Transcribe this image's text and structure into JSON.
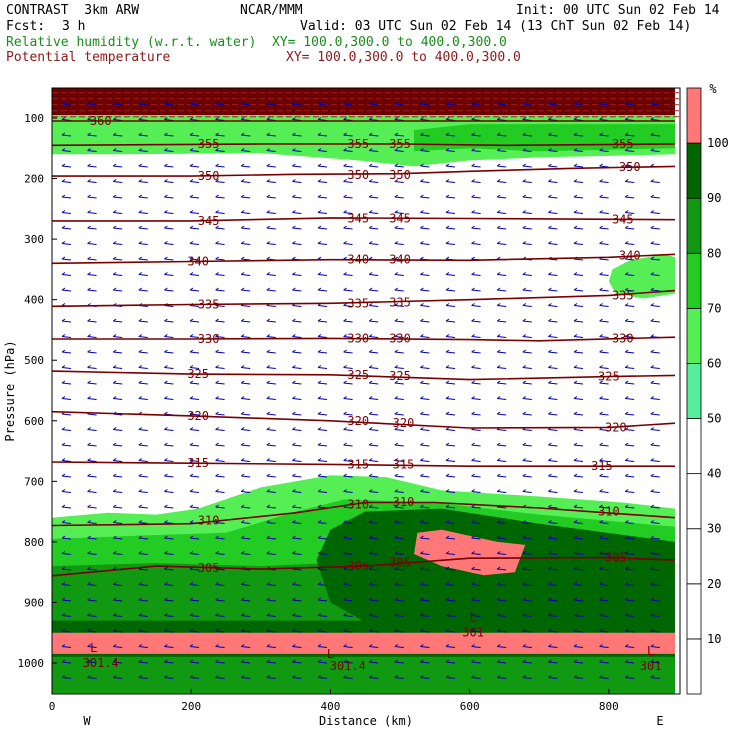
{
  "header": {
    "model": "CONTRAST  3km ARW",
    "org": "NCAR/MMM",
    "init": "Init: 00 UTC Sun 02 Feb 14",
    "fcst_label": "Fcst:",
    "fcst_value": "3 h",
    "valid": "Valid: 03 UTC Sun 02 Feb 14 (13 ChT Sun 02 Feb 14)",
    "field1": "Relative humidity (w.r.t. water)",
    "field1_xy": "XY= 100.0,300.0 to 400.0,300.0",
    "field2": "Potential temperature",
    "field2_xy": "XY= 100.0,300.0 to 400.0,300.0",
    "field1_color": "#1a8c1a",
    "field2_color": "#8b1a1a"
  },
  "chart_data": {
    "type": "contour",
    "xlabel": "Distance (km)",
    "ylabel": "Pressure (hPa)",
    "xlim": [
      0,
      895
    ],
    "ylim": [
      1045,
      50
    ],
    "x_ticks": [
      0,
      200,
      400,
      600,
      800
    ],
    "y_ticks": [
      100,
      200,
      300,
      400,
      500,
      600,
      700,
      800,
      900,
      1000
    ],
    "x_end_labels": [
      "W",
      "E"
    ],
    "colorbar": {
      "unit": "%",
      "levels": [
        10,
        20,
        30,
        40,
        50,
        60,
        70,
        80,
        90,
        100
      ],
      "colors": [
        "#ffffff",
        "#ffffff",
        "#ffffff",
        "#ffffff",
        "#ffffff",
        "#55ee99",
        "#55ee55",
        "#22cc22",
        "#119911",
        "#006600",
        "#ff7777"
      ]
    },
    "theta_contours": [
      {
        "value": 360,
        "points": [
          [
            0,
            105
          ],
          [
            895,
            105
          ]
        ]
      },
      {
        "value": 355,
        "points": [
          [
            0,
            145
          ],
          [
            300,
            143
          ],
          [
            500,
            143
          ],
          [
            650,
            145
          ],
          [
            895,
            143
          ]
        ]
      },
      {
        "value": 350,
        "points": [
          [
            0,
            196
          ],
          [
            200,
            196
          ],
          [
            350,
            193
          ],
          [
            500,
            192
          ],
          [
            600,
            188
          ],
          [
            750,
            183
          ],
          [
            895,
            180
          ]
        ]
      },
      {
        "value": 345,
        "points": [
          [
            0,
            270
          ],
          [
            200,
            270
          ],
          [
            400,
            265
          ],
          [
            600,
            266
          ],
          [
            895,
            268
          ]
        ]
      },
      {
        "value": 340,
        "points": [
          [
            0,
            340
          ],
          [
            200,
            337
          ],
          [
            400,
            334
          ],
          [
            600,
            335
          ],
          [
            800,
            330
          ],
          [
            895,
            325
          ]
        ]
      },
      {
        "value": 335,
        "points": [
          [
            0,
            411
          ],
          [
            200,
            408
          ],
          [
            400,
            406
          ],
          [
            600,
            400
          ],
          [
            800,
            393
          ],
          [
            895,
            385
          ]
        ]
      },
      {
        "value": 330,
        "points": [
          [
            0,
            465
          ],
          [
            200,
            465
          ],
          [
            400,
            464
          ],
          [
            600,
            466
          ],
          [
            700,
            468
          ],
          [
            895,
            462
          ]
        ]
      },
      {
        "value": 325,
        "points": [
          [
            0,
            518
          ],
          [
            200,
            523
          ],
          [
            400,
            524
          ],
          [
            600,
            532
          ],
          [
            800,
            527
          ],
          [
            895,
            525
          ]
        ]
      },
      {
        "value": 320,
        "points": [
          [
            0,
            585
          ],
          [
            200,
            592
          ],
          [
            400,
            600
          ],
          [
            600,
            612
          ],
          [
            800,
            611
          ],
          [
            895,
            604
          ]
        ]
      },
      {
        "value": 315,
        "points": [
          [
            0,
            668
          ],
          [
            200,
            670
          ],
          [
            400,
            672
          ],
          [
            600,
            675
          ],
          [
            800,
            675
          ],
          [
            895,
            675
          ]
        ]
      },
      {
        "value": 310,
        "points": [
          [
            0,
            773
          ],
          [
            200,
            770
          ],
          [
            350,
            752
          ],
          [
            450,
            735
          ],
          [
            550,
            735
          ],
          [
            700,
            744
          ],
          [
            895,
            760
          ]
        ]
      },
      {
        "value": 305,
        "points": [
          [
            0,
            856
          ],
          [
            150,
            840
          ],
          [
            300,
            845
          ],
          [
            450,
            840
          ],
          [
            600,
            827
          ],
          [
            800,
            826
          ],
          [
            895,
            830
          ]
        ]
      }
    ],
    "theta_labels": [
      {
        "value": "360",
        "x": 70,
        "p": 105
      },
      {
        "value": "355",
        "x": 225,
        "p": 143
      },
      {
        "value": "355",
        "x": 440,
        "p": 143
      },
      {
        "value": "355",
        "x": 500,
        "p": 143
      },
      {
        "value": "355",
        "x": 820,
        "p": 143
      },
      {
        "value": "350",
        "x": 225,
        "p": 196
      },
      {
        "value": "350",
        "x": 440,
        "p": 194
      },
      {
        "value": "350",
        "x": 500,
        "p": 194
      },
      {
        "value": "350",
        "x": 830,
        "p": 181
      },
      {
        "value": "345",
        "x": 225,
        "p": 270
      },
      {
        "value": "345",
        "x": 440,
        "p": 266
      },
      {
        "value": "345",
        "x": 500,
        "p": 266
      },
      {
        "value": "345",
        "x": 820,
        "p": 268
      },
      {
        "value": "340",
        "x": 210,
        "p": 337
      },
      {
        "value": "340",
        "x": 440,
        "p": 334
      },
      {
        "value": "340",
        "x": 500,
        "p": 334
      },
      {
        "value": "340",
        "x": 830,
        "p": 327
      },
      {
        "value": "335",
        "x": 225,
        "p": 408
      },
      {
        "value": "335",
        "x": 440,
        "p": 406
      },
      {
        "value": "335",
        "x": 500,
        "p": 405
      },
      {
        "value": "335",
        "x": 820,
        "p": 393
      },
      {
        "value": "330",
        "x": 225,
        "p": 465
      },
      {
        "value": "330",
        "x": 440,
        "p": 464
      },
      {
        "value": "330",
        "x": 500,
        "p": 464
      },
      {
        "value": "330",
        "x": 820,
        "p": 464
      },
      {
        "value": "325",
        "x": 210,
        "p": 523
      },
      {
        "value": "325",
        "x": 440,
        "p": 524
      },
      {
        "value": "325",
        "x": 500,
        "p": 526
      },
      {
        "value": "325",
        "x": 800,
        "p": 527
      },
      {
        "value": "320",
        "x": 210,
        "p": 592
      },
      {
        "value": "320",
        "x": 440,
        "p": 600
      },
      {
        "value": "320",
        "x": 505,
        "p": 604
      },
      {
        "value": "320",
        "x": 810,
        "p": 611
      },
      {
        "value": "315",
        "x": 210,
        "p": 670
      },
      {
        "value": "315",
        "x": 440,
        "p": 672
      },
      {
        "value": "315",
        "x": 505,
        "p": 672
      },
      {
        "value": "315",
        "x": 790,
        "p": 675
      },
      {
        "value": "310",
        "x": 225,
        "p": 765
      },
      {
        "value": "310",
        "x": 440,
        "p": 738
      },
      {
        "value": "310",
        "x": 505,
        "p": 734
      },
      {
        "value": "310",
        "x": 800,
        "p": 750
      },
      {
        "value": "305",
        "x": 225,
        "p": 843
      },
      {
        "value": "305",
        "x": 440,
        "p": 840
      },
      {
        "value": "305",
        "x": 500,
        "p": 834
      },
      {
        "value": "305",
        "x": 810,
        "p": 826
      },
      {
        "value": "301",
        "x": 605,
        "p": 950
      },
      {
        "value": "301.4",
        "x": 70,
        "p": 1000
      },
      {
        "value": "301.4",
        "x": 425,
        "p": 1005
      },
      {
        "value": "301",
        "x": 860,
        "p": 1005
      }
    ],
    "low_markers": [
      {
        "value": "L",
        "x": 605,
        "p": 925
      },
      {
        "value": "L",
        "x": 60,
        "p": 975
      },
      {
        "value": "L",
        "x": 400,
        "p": 985
      },
      {
        "value": "L",
        "x": 860,
        "p": 980
      }
    ],
    "rh_regions": [
      {
        "level": 100,
        "points": [
          [
            0,
            50
          ],
          [
            895,
            50
          ],
          [
            895,
            95
          ],
          [
            0,
            95
          ]
        ]
      },
      {
        "level": 60,
        "points": [
          [
            0,
            95
          ],
          [
            895,
            95
          ],
          [
            895,
            110
          ],
          [
            895,
            160
          ],
          [
            700,
            165
          ],
          [
            600,
            170
          ],
          [
            520,
            180
          ],
          [
            440,
            170
          ],
          [
            300,
            158
          ],
          [
            100,
            160
          ],
          [
            0,
            160
          ]
        ]
      },
      {
        "level": 70,
        "points": [
          [
            600,
            110
          ],
          [
            895,
            110
          ],
          [
            895,
            150
          ],
          [
            700,
            155
          ],
          [
            600,
            150
          ],
          [
            520,
            155
          ],
          [
            520,
            120
          ]
        ]
      },
      {
        "level": 60,
        "points": [
          [
            805,
            350
          ],
          [
            830,
            335
          ],
          [
            880,
            325
          ],
          [
            895,
            330
          ],
          [
            895,
            390
          ],
          [
            850,
            398
          ],
          [
            810,
            390
          ],
          [
            800,
            370
          ]
        ]
      },
      {
        "level": 60,
        "points": [
          [
            0,
            760
          ],
          [
            80,
            752
          ],
          [
            150,
            755
          ],
          [
            210,
            745
          ],
          [
            300,
            710
          ],
          [
            400,
            690
          ],
          [
            480,
            693
          ],
          [
            560,
            715
          ],
          [
            700,
            725
          ],
          [
            820,
            735
          ],
          [
            895,
            745
          ],
          [
            895,
            1050
          ],
          [
            0,
            1050
          ]
        ]
      },
      {
        "level": 70,
        "points": [
          [
            0,
            795
          ],
          [
            120,
            790
          ],
          [
            250,
            785
          ],
          [
            350,
            750
          ],
          [
            420,
            730
          ],
          [
            550,
            735
          ],
          [
            700,
            755
          ],
          [
            895,
            775
          ],
          [
            895,
            1050
          ],
          [
            0,
            1050
          ]
        ]
      },
      {
        "level": 80,
        "points": [
          [
            0,
            840
          ],
          [
            150,
            835
          ],
          [
            300,
            840
          ],
          [
            400,
            835
          ],
          [
            450,
            830
          ],
          [
            450,
            1050
          ],
          [
            0,
            1050
          ]
        ]
      },
      {
        "level": 80,
        "points": [
          [
            420,
            950
          ],
          [
            895,
            950
          ],
          [
            895,
            1050
          ],
          [
            420,
            1050
          ]
        ]
      },
      {
        "level": 90,
        "points": [
          [
            400,
            780
          ],
          [
            450,
            750
          ],
          [
            560,
            745
          ],
          [
            700,
            770
          ],
          [
            895,
            800
          ],
          [
            895,
            960
          ],
          [
            500,
            965
          ],
          [
            400,
            900
          ],
          [
            380,
            830
          ]
        ]
      },
      {
        "level": 90,
        "points": [
          [
            0,
            930
          ],
          [
            895,
            930
          ],
          [
            895,
            990
          ],
          [
            0,
            990
          ]
        ]
      },
      {
        "level": 100,
        "points": [
          [
            0,
            950
          ],
          [
            895,
            950
          ],
          [
            895,
            985
          ],
          [
            0,
            985
          ]
        ]
      },
      {
        "level": 80,
        "points": [
          [
            0,
            990
          ],
          [
            895,
            990
          ],
          [
            895,
            1020
          ],
          [
            0,
            1020
          ]
        ]
      },
      {
        "level": 101,
        "points": [
          [
            525,
            785
          ],
          [
            560,
            780
          ],
          [
            640,
            800
          ],
          [
            680,
            805
          ],
          [
            665,
            850
          ],
          [
            620,
            855
          ],
          [
            560,
            840
          ],
          [
            520,
            820
          ]
        ]
      }
    ]
  }
}
